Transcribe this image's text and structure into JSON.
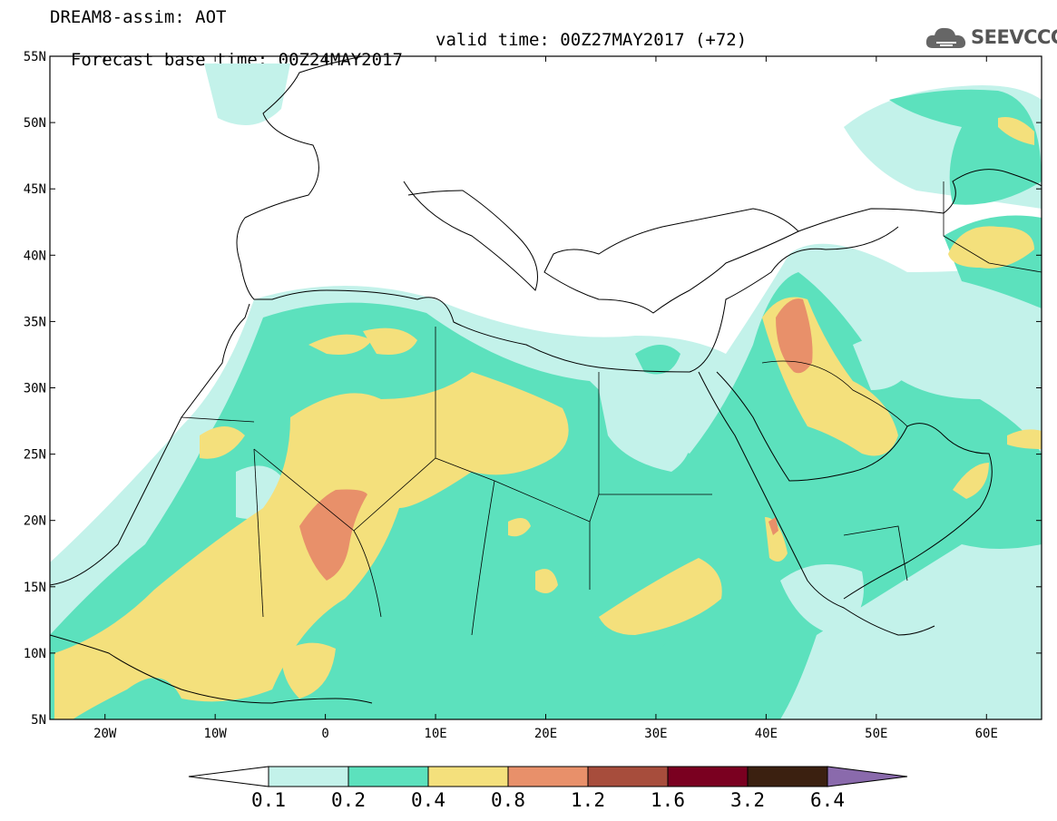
{
  "header": {
    "line1": "DREAM8-assim: AOT",
    "line2_left": "Forecast base time: 00Z24MAY2017",
    "line2_right": "valid time: 00Z27MAY2017 (+72)",
    "logo_text": "SEEVCCC",
    "logo_icon": "cloud-icon"
  },
  "map": {
    "lon_range": [
      -25,
      65
    ],
    "lat_range": [
      5,
      55
    ],
    "lat_ticks": [
      {
        "value": 55,
        "label": "55N"
      },
      {
        "value": 50,
        "label": "50N"
      },
      {
        "value": 45,
        "label": "45N"
      },
      {
        "value": 40,
        "label": "40N"
      },
      {
        "value": 35,
        "label": "35N"
      },
      {
        "value": 30,
        "label": "30N"
      },
      {
        "value": 25,
        "label": "25N"
      },
      {
        "value": 20,
        "label": "20N"
      },
      {
        "value": 15,
        "label": "15N"
      },
      {
        "value": 10,
        "label": "10N"
      },
      {
        "value": 5,
        "label": "5N"
      }
    ],
    "lon_ticks": [
      {
        "value": -20,
        "label": "20W"
      },
      {
        "value": -10,
        "label": "10W"
      },
      {
        "value": 0,
        "label": "0"
      },
      {
        "value": 10,
        "label": "10E"
      },
      {
        "value": 20,
        "label": "20E"
      },
      {
        "value": 30,
        "label": "30E"
      },
      {
        "value": 40,
        "label": "40E"
      },
      {
        "value": 50,
        "label": "50E"
      },
      {
        "value": 60,
        "label": "60E"
      }
    ]
  },
  "colorbar": {
    "labels": [
      "0.1",
      "0.2",
      "0.4",
      "0.8",
      "1.2",
      "1.6",
      "3.2",
      "6.4"
    ],
    "colors": {
      "below": "#ffffff",
      "c1": "#c3f2ea",
      "c2": "#5ce1bd",
      "c3": "#f4e07c",
      "c4": "#e8906a",
      "c5": "#a74d3c",
      "c6": "#7a0020",
      "c7": "#3b2010",
      "above": "#8a6aac"
    }
  }
}
